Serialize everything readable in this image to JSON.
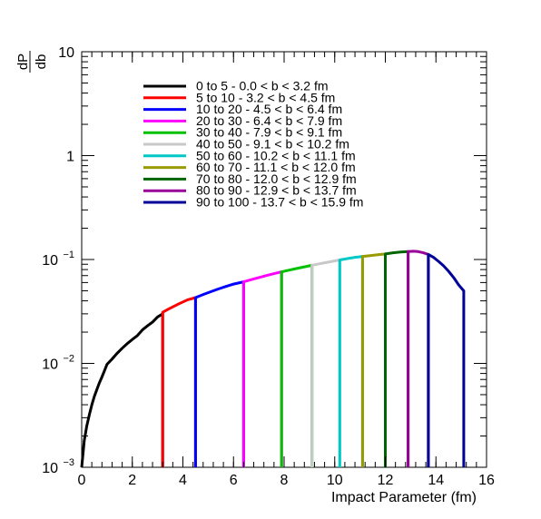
{
  "chart_data": {
    "type": "line",
    "title": "",
    "xlabel": "Impact Parameter (fm)",
    "ylabel_num": "dP",
    "ylabel_den": "db",
    "xlim": [
      0,
      16
    ],
    "ylim": [
      0.001,
      10
    ],
    "yscale": "log",
    "grid": false,
    "legend_position": "top-left",
    "x_ticks": [
      "0",
      "2",
      "4",
      "6",
      "8",
      "10",
      "12",
      "14",
      "16"
    ],
    "y_ticks": [
      {
        "base": "10",
        "exp": "−3"
      },
      {
        "base": "10",
        "exp": "−2"
      },
      {
        "base": "10",
        "exp": "−1"
      },
      {
        "base": "1",
        "exp": ""
      },
      {
        "base": "10",
        "exp": ""
      }
    ],
    "series": [
      {
        "name": "0 to 5 - 0.0 < b < 3.2 fm",
        "color": "#000000",
        "x": [
          0.0,
          0.1,
          0.2,
          0.3,
          0.4,
          0.5,
          0.6,
          0.7,
          0.8,
          0.9,
          1.0,
          1.2,
          1.4,
          1.6,
          1.8,
          2.0,
          2.2,
          2.4,
          2.6,
          2.8,
          3.0,
          3.2
        ],
        "y": [
          0.001,
          0.0018,
          0.0025,
          0.0032,
          0.004,
          0.0048,
          0.0056,
          0.0065,
          0.0074,
          0.0085,
          0.0098,
          0.011,
          0.0125,
          0.014,
          0.0155,
          0.017,
          0.0185,
          0.021,
          0.023,
          0.025,
          0.028,
          0.03
        ]
      },
      {
        "name": "5 to 10 - 3.2 < b < 4.5 fm",
        "color": "#ff0000",
        "x": [
          3.2,
          3.4,
          3.6,
          3.8,
          4.0,
          4.2,
          4.5
        ],
        "y": [
          0.031,
          0.033,
          0.035,
          0.037,
          0.039,
          0.041,
          0.043
        ]
      },
      {
        "name": "10 to 20 - 4.5 < b < 6.4 fm",
        "color": "#0000ff",
        "x": [
          4.5,
          4.8,
          5.1,
          5.4,
          5.7,
          6.0,
          6.4
        ],
        "y": [
          0.043,
          0.046,
          0.049,
          0.052,
          0.055,
          0.058,
          0.061
        ]
      },
      {
        "name": "20 to 30 - 6.4 < b < 7.9 fm",
        "color": "#ff00ff",
        "x": [
          6.4,
          6.7,
          7.0,
          7.3,
          7.6,
          7.9
        ],
        "y": [
          0.061,
          0.064,
          0.067,
          0.07,
          0.073,
          0.076
        ]
      },
      {
        "name": "30 to 40 - 7.9 < b < 9.1 fm",
        "color": "#00c000",
        "x": [
          7.9,
          8.2,
          8.5,
          8.8,
          9.1
        ],
        "y": [
          0.076,
          0.079,
          0.082,
          0.085,
          0.088
        ]
      },
      {
        "name": "40 to 50 - 9.1 < b < 10.2 fm",
        "color": "#c8c8c8",
        "x": [
          9.1,
          9.4,
          9.7,
          10.0,
          10.2
        ],
        "y": [
          0.088,
          0.091,
          0.094,
          0.097,
          0.099
        ]
      },
      {
        "name": "50 to 60 - 10.2 < b < 11.1 fm",
        "color": "#00c8c8",
        "x": [
          10.2,
          10.5,
          10.8,
          11.1
        ],
        "y": [
          0.099,
          0.102,
          0.105,
          0.107
        ]
      },
      {
        "name": "60 to 70 - 11.1 < b < 12.0 fm",
        "color": "#999900",
        "x": [
          11.1,
          11.4,
          11.7,
          12.0
        ],
        "y": [
          0.107,
          0.109,
          0.111,
          0.113
        ]
      },
      {
        "name": "70 to 80 - 12.0 < b < 12.9 fm",
        "color": "#006400",
        "x": [
          12.0,
          12.3,
          12.6,
          12.9
        ],
        "y": [
          0.113,
          0.116,
          0.118,
          0.119
        ]
      },
      {
        "name": "80 to 90 - 12.9 < b < 13.7 fm",
        "color": "#990099",
        "x": [
          12.9,
          13.1,
          13.3,
          13.5,
          13.7
        ],
        "y": [
          0.119,
          0.12,
          0.119,
          0.116,
          0.112
        ]
      },
      {
        "name": "90 to 100 - 13.7 < b < 15.9 fm",
        "color": "#000099",
        "x": [
          13.7,
          13.9,
          14.1,
          14.3,
          14.5,
          14.7,
          14.9,
          15.1
        ],
        "y": [
          0.112,
          0.105,
          0.096,
          0.087,
          0.077,
          0.067,
          0.057,
          0.05
        ]
      }
    ]
  }
}
